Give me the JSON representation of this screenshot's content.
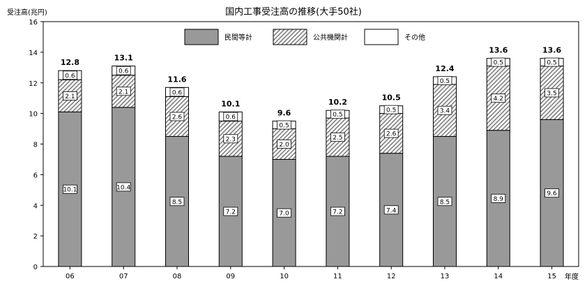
{
  "chart_data": {
    "type": "bar",
    "stacked": true,
    "title": "国内工事受注高の推移(大手50社)",
    "ylabel": "受注高(兆円)",
    "xlabel": "年度",
    "ylim": [
      0,
      16
    ],
    "yticks": [
      0,
      2,
      4,
      6,
      8,
      10,
      12,
      14,
      16
    ],
    "grid": false,
    "legend_position": "top-center",
    "categories": [
      "06",
      "07",
      "08",
      "09",
      "10",
      "11",
      "12",
      "13",
      "14",
      "15"
    ],
    "series": [
      {
        "name": "民間等計",
        "pattern": "solid",
        "color": "#999999",
        "values": [
          10.1,
          10.4,
          8.5,
          7.2,
          7.0,
          7.2,
          7.4,
          8.5,
          8.9,
          9.6
        ],
        "labels": [
          "10.1",
          "10.4",
          "8.5",
          "7.2",
          "7.0",
          "7.2",
          "7.4",
          "8.5",
          "8.9",
          "9.6"
        ]
      },
      {
        "name": "公共機関計",
        "pattern": "hatched",
        "color": "#808080",
        "values": [
          2.1,
          2.1,
          2.6,
          2.3,
          2.0,
          2.5,
          2.6,
          3.4,
          4.2,
          3.5
        ],
        "labels": [
          "2.1",
          "2.1",
          "2.6",
          "2.3",
          "2.0",
          "2.5",
          "2.6",
          "3.4",
          "4.2",
          "3.5"
        ]
      },
      {
        "name": "その他",
        "pattern": "white",
        "color": "#ffffff",
        "values": [
          0.6,
          0.6,
          0.6,
          0.6,
          0.5,
          0.5,
          0.5,
          0.5,
          0.5,
          0.5
        ],
        "labels": [
          "0.6",
          "0.6",
          "0.6",
          "0.6",
          "0.5",
          "0.5",
          "0.5",
          "0.5",
          "0.5",
          "0.5"
        ]
      }
    ],
    "totals": [
      "12.8",
      "13.1",
      "11.6",
      "10.1",
      "9.6",
      "10.2",
      "10.5",
      "12.4",
      "13.6",
      "13.6"
    ]
  }
}
